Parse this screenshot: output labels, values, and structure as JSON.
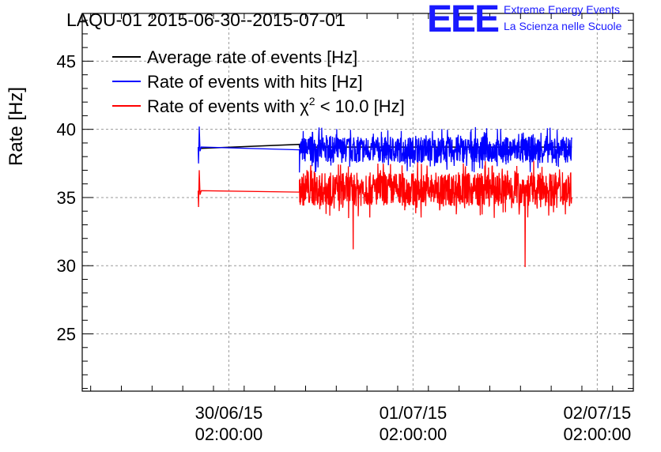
{
  "logo": {
    "mark": "EEE",
    "line1": "Extreme Energy Events",
    "line2": "La Scienza nelle Scuole"
  },
  "colors": {
    "average": "#000000",
    "hits": "#0000ff",
    "chi2": "#ff0000",
    "grid": "#999999"
  },
  "chart_data": {
    "type": "line",
    "title": "LAQU-01 2015-06-30--2015-07-01",
    "xlabel": "",
    "ylabel": "Rate [Hz]",
    "xlim_hours": [
      -19.1,
      52.7
    ],
    "ylim": [
      20.8,
      48.5
    ],
    "yticks": [
      25,
      30,
      35,
      40,
      45
    ],
    "xticks": [
      {
        "hours": 0,
        "date": "30/06/15",
        "time": "02:00:00"
      },
      {
        "hours": 24,
        "date": "01/07/15",
        "time": "02:00:00"
      },
      {
        "hours": 48,
        "date": "02/07/15",
        "time": "02:00:00"
      }
    ],
    "legend": [
      {
        "key": "average",
        "text": "Average rate of events [Hz]"
      },
      {
        "key": "hits",
        "text": "Rate of events with hits [Hz]"
      },
      {
        "key": "chi2",
        "pre": "Rate of events with ",
        "chi": "χ",
        "sup": "2",
        "post": " < 10.0 [Hz]"
      }
    ],
    "x_range_hours": [
      -4.0,
      44.7
    ],
    "gap_hours": [
      -3.6,
      9.2
    ],
    "series": [
      {
        "key": "average",
        "name": "Average rate of events [Hz]",
        "points": [
          [
            -3.6,
            38.6
          ],
          [
            9.2,
            38.9
          ],
          [
            9.2,
            38.7
          ],
          [
            44.7,
            38.7
          ]
        ]
      },
      {
        "key": "hits",
        "name": "Rate of events with hits [Hz]",
        "mean_before": 38.7,
        "mean_after": 38.5,
        "band": [
          37.3,
          40.8
        ],
        "end_before": 38.5
      },
      {
        "key": "chi2",
        "name": "Rate of events with chi2 < 10.0 [Hz]",
        "mean_before": 35.5,
        "mean_after": 35.6,
        "band": [
          33.0,
          37.5
        ],
        "end_before": 35.4,
        "spikes": [
          {
            "hours": 16.2,
            "value": 31.2
          },
          {
            "hours": 38.6,
            "value": 29.9
          }
        ]
      }
    ]
  }
}
